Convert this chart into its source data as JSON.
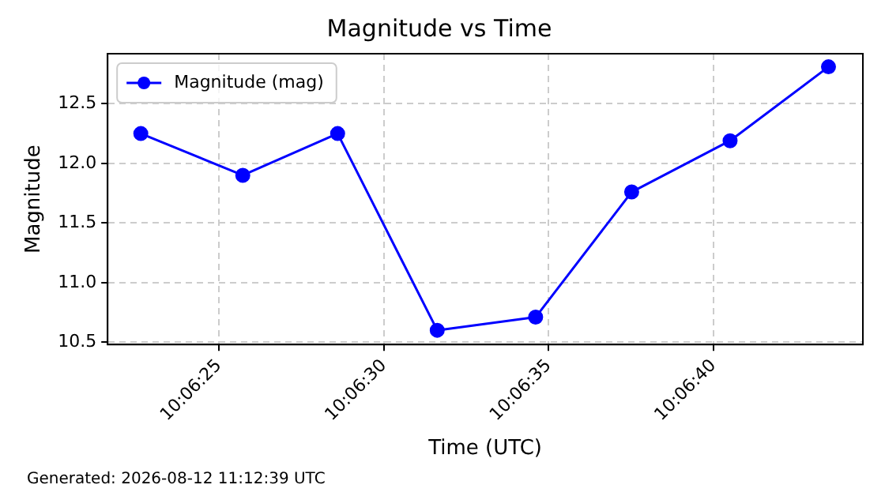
{
  "chart_data": {
    "type": "line",
    "title": "Magnitude vs Time",
    "xlabel": "Time (UTC)",
    "ylabel": "Magnitude",
    "x": [
      10.10628,
      10.10714,
      10.10794,
      10.10878,
      10.10961,
      10.11042,
      10.11125,
      10.11208
    ],
    "series": [
      {
        "name": "Magnitude (mag)",
        "color": "#0000ff",
        "values": [
          12.25,
          11.9,
          12.25,
          10.6,
          10.71,
          11.76,
          12.19,
          12.81
        ]
      }
    ],
    "xlim": [
      10.106,
      10.11237
    ],
    "xticks": [
      {
        "value": 10.10694,
        "label": "10:06:25"
      },
      {
        "value": 10.10833,
        "label": "10:06:30"
      },
      {
        "value": 10.10972,
        "label": "10:06:35"
      },
      {
        "value": 10.11111,
        "label": "10:06:40"
      }
    ],
    "ylim": [
      10.48,
      12.92
    ],
    "yticks": [
      10.5,
      {
        "value": 11,
        "label": "11.0"
      },
      11.5,
      {
        "value": 12,
        "label": "12.0"
      },
      12.5
    ],
    "grid": true,
    "legend": "top left",
    "marker": "circle",
    "line_style": "solid",
    "annotations": [
      "Generated: 2026-08-12 11:12:39 UTC"
    ]
  }
}
